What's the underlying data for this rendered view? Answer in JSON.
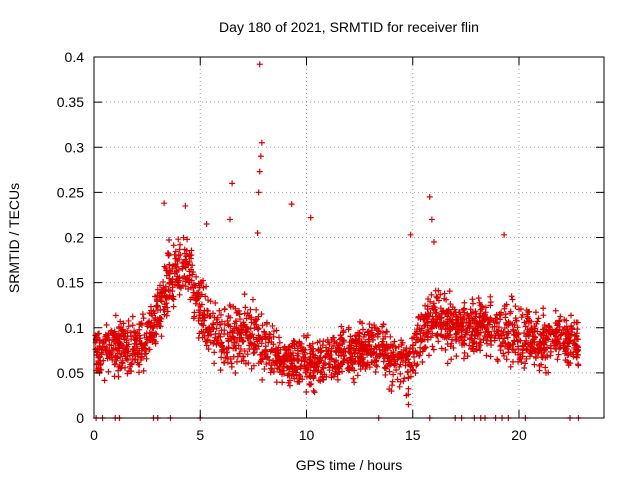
{
  "chart_data": {
    "type": "scatter",
    "title": "Day 180 of 2021, SRMTID for receiver flin",
    "xlabel": "GPS time / hours",
    "ylabel": "SRMTID / TECUs",
    "xlim": [
      0,
      24
    ],
    "ylim": [
      0,
      0.4
    ],
    "x_ticks": [
      0,
      5,
      10,
      15,
      20
    ],
    "y_ticks": [
      0,
      0.05,
      0.1,
      0.15,
      0.2,
      0.25,
      0.3,
      0.35,
      0.4
    ],
    "x_tick_labels": [
      "0",
      "5",
      "10",
      "15",
      "20"
    ],
    "y_tick_labels": [
      "0",
      "0.05",
      "0.1",
      "0.15",
      "0.2",
      "0.25",
      "0.3",
      "0.35",
      "0.4"
    ],
    "grid": true,
    "marker": "+",
    "color": "#dd0000",
    "envelope": {
      "description": "approximate typical SRMTID level (TECU) vs GPS hour, used with spread to depict the dense cloud of points",
      "hours": [
        0,
        1,
        2,
        3,
        3.5,
        4,
        4.5,
        5,
        6,
        7,
        7.5,
        8,
        9,
        10,
        11,
        12,
        13,
        14,
        14.8,
        15.5,
        16,
        17,
        18,
        19,
        20,
        21,
        22,
        22.8
      ],
      "center": [
        0.075,
        0.08,
        0.075,
        0.11,
        0.15,
        0.17,
        0.165,
        0.12,
        0.085,
        0.09,
        0.095,
        0.08,
        0.065,
        0.06,
        0.065,
        0.07,
        0.08,
        0.07,
        0.06,
        0.1,
        0.11,
        0.1,
        0.105,
        0.1,
        0.09,
        0.085,
        0.09,
        0.075
      ],
      "spread": [
        0.035,
        0.035,
        0.035,
        0.045,
        0.045,
        0.04,
        0.04,
        0.045,
        0.04,
        0.045,
        0.05,
        0.04,
        0.035,
        0.035,
        0.035,
        0.035,
        0.035,
        0.035,
        0.04,
        0.04,
        0.04,
        0.04,
        0.04,
        0.04,
        0.04,
        0.04,
        0.035,
        0.03
      ]
    },
    "peaks": [
      {
        "x": 7.8,
        "y": 0.392
      },
      {
        "x": 7.9,
        "y": 0.305
      },
      {
        "x": 7.85,
        "y": 0.29
      },
      {
        "x": 7.8,
        "y": 0.273
      },
      {
        "x": 7.75,
        "y": 0.25
      },
      {
        "x": 7.7,
        "y": 0.205
      },
      {
        "x": 6.5,
        "y": 0.26
      },
      {
        "x": 6.4,
        "y": 0.22
      },
      {
        "x": 9.3,
        "y": 0.237
      },
      {
        "x": 10.2,
        "y": 0.222
      },
      {
        "x": 15.8,
        "y": 0.245
      },
      {
        "x": 15.9,
        "y": 0.22
      },
      {
        "x": 16.0,
        "y": 0.195
      },
      {
        "x": 14.9,
        "y": 0.203
      },
      {
        "x": 19.3,
        "y": 0.203
      },
      {
        "x": 3.3,
        "y": 0.238
      },
      {
        "x": 4.3,
        "y": 0.235
      },
      {
        "x": 5.3,
        "y": 0.215
      },
      {
        "x": 14.8,
        "y": 0.015
      },
      {
        "x": 14.7,
        "y": 0.025
      }
    ],
    "zero_markers_x": [
      0.1,
      0.4,
      1.0,
      1.2,
      2.8,
      3.0,
      3.6,
      5.0,
      13.4,
      15.8,
      17.0,
      17.3,
      17.9,
      18.2,
      18.4,
      18.9,
      19.2,
      19.5,
      20.3,
      22.4,
      22.8
    ]
  }
}
